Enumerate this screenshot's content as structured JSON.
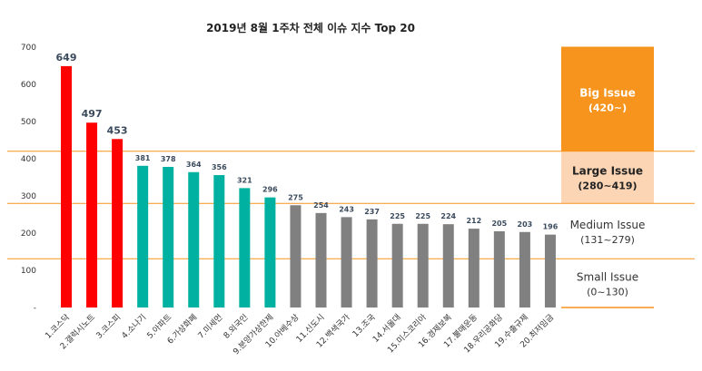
{
  "chart_data": {
    "type": "bar",
    "title": "2019년 8월 1주차 전체 이슈 지수 Top 20",
    "ylim": [
      0,
      700
    ],
    "yticks": [
      "-",
      "100",
      "200",
      "300",
      "400",
      "500",
      "600",
      "700"
    ],
    "grid": false,
    "categories": [
      "1.코스닥",
      "2.갤럭시노트",
      "3.코스피",
      "4.소나기",
      "5.아파트",
      "6.가상화폐",
      "7.미세먼",
      "8.외국인",
      "9.분양가상한제",
      "10.아베수상",
      "11.신도시",
      "12.백색국가",
      "13.조국",
      "14.서울대",
      "15.미스코리아",
      "16.경제보복",
      "17.불매운동",
      "18.우리공화당",
      "19.수출규제",
      "20.최저임금"
    ],
    "values": [
      649,
      497,
      453,
      381,
      378,
      364,
      356,
      321,
      296,
      275,
      254,
      243,
      237,
      225,
      225,
      224,
      212,
      205,
      203,
      196
    ],
    "bar_colors": [
      "#ff0000",
      "#ff0000",
      "#ff0000",
      "#00b0a0",
      "#00b0a0",
      "#00b0a0",
      "#00b0a0",
      "#00b0a0",
      "#00b0a0",
      "#808080",
      "#808080",
      "#808080",
      "#808080",
      "#808080",
      "#808080",
      "#808080",
      "#808080",
      "#808080",
      "#808080",
      "#808080"
    ],
    "thresholds": [
      420,
      280,
      131
    ],
    "bands": [
      {
        "name": "Big Issue",
        "range": "(420~)",
        "min": 420,
        "max": 700,
        "fill": "#f7941d",
        "text_color": "#ffffff",
        "bold": true
      },
      {
        "name": "Large Issue",
        "range": "(280~419)",
        "min": 280,
        "max": 419,
        "fill": "#fcd5b4",
        "text_color": "#222222",
        "bold": true
      },
      {
        "name": "Medium Issue",
        "range": "(131~279)",
        "min": 131,
        "max": 279,
        "fill": "#ffffff",
        "text_color": "#333333",
        "bold": false
      },
      {
        "name": "Small Issue",
        "range": "(0~130)",
        "min": 0,
        "max": 130,
        "fill": "#ffffff",
        "text_color": "#333333",
        "bold": false
      }
    ],
    "threshold_line_color": "#f7941d"
  }
}
